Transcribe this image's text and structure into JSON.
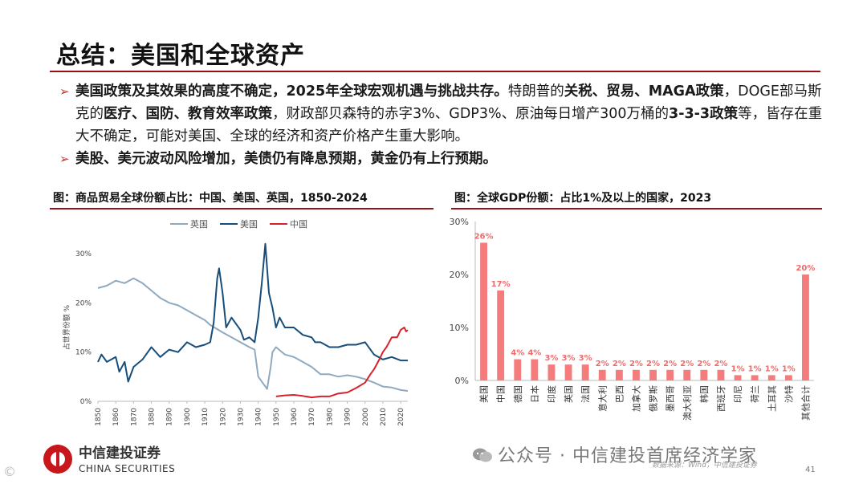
{
  "header": {
    "title": "总结：美国和全球资产"
  },
  "bullets": [
    {
      "arrow": "➢",
      "segments": [
        {
          "t": "美国政策及其效果的高度不确定，2025年全球宏观机遇与挑战共存。",
          "b": true
        },
        {
          "t": "特朗普的",
          "b": false
        },
        {
          "t": "关税、贸易、MAGA政策",
          "b": true
        },
        {
          "t": "，DOGE部马斯克的",
          "b": false
        },
        {
          "t": "医疗、国防、教育效率政策",
          "b": true
        },
        {
          "t": "，财政部贝森特的赤字3%、GDP3%、原油每日增产300万桶的",
          "b": false
        },
        {
          "t": "3-3-3政策",
          "b": true
        },
        {
          "t": "等，皆存在重大不确定，可能对美国、全球的经济和资产价格产生重大影响。",
          "b": false
        }
      ]
    },
    {
      "arrow": "➢",
      "segments": [
        {
          "t": "美股、美元波动风险增加，美债仍有降息预期，黄金仍有上行预期。",
          "b": true
        }
      ]
    }
  ],
  "figures": {
    "left_title": "图：商品贸易全球份额占比：中国、美国、英国，1850-2024",
    "right_title": "图：全球GDP份额：占比1%及以上的国家，2023"
  },
  "chart_data": [
    {
      "type": "line",
      "title": "",
      "ylabel": "占世界份额 %",
      "ylim": [
        0,
        30
      ],
      "yticks": [
        "0%",
        "10%",
        "20%",
        "30%"
      ],
      "xlim": [
        1850,
        2024
      ],
      "xticks": [
        1850,
        1860,
        1870,
        1880,
        1890,
        1900,
        1910,
        1920,
        1930,
        1940,
        1950,
        1960,
        1970,
        1980,
        1990,
        2000,
        2010,
        2020
      ],
      "legend_position": "top-left",
      "series": [
        {
          "name": "英国",
          "color": "#8fa9bf",
          "points": [
            [
              1850,
              23
            ],
            [
              1855,
              23.5
            ],
            [
              1860,
              24.5
            ],
            [
              1865,
              24
            ],
            [
              1870,
              25
            ],
            [
              1875,
              24
            ],
            [
              1880,
              22.5
            ],
            [
              1885,
              21
            ],
            [
              1890,
              20
            ],
            [
              1895,
              19.5
            ],
            [
              1900,
              18.5
            ],
            [
              1905,
              17.5
            ],
            [
              1910,
              16.5
            ],
            [
              1913,
              15.5
            ],
            [
              1920,
              14
            ],
            [
              1925,
              13
            ],
            [
              1930,
              12
            ],
            [
              1935,
              11
            ],
            [
              1938,
              10.5
            ],
            [
              1940,
              5
            ],
            [
              1945,
              2.5
            ],
            [
              1947,
              7
            ],
            [
              1948,
              10
            ],
            [
              1950,
              11
            ],
            [
              1955,
              9.5
            ],
            [
              1960,
              9
            ],
            [
              1965,
              8
            ],
            [
              1970,
              7
            ],
            [
              1975,
              5.5
            ],
            [
              1980,
              5.5
            ],
            [
              1985,
              5
            ],
            [
              1990,
              5.3
            ],
            [
              1995,
              5
            ],
            [
              2000,
              4.5
            ],
            [
              2005,
              3.8
            ],
            [
              2010,
              3
            ],
            [
              2015,
              2.8
            ],
            [
              2020,
              2.3
            ],
            [
              2024,
              2.1
            ]
          ]
        },
        {
          "name": "美国",
          "color": "#174d7a",
          "points": [
            [
              1850,
              8
            ],
            [
              1852,
              9.5
            ],
            [
              1855,
              8
            ],
            [
              1860,
              9
            ],
            [
              1862,
              6
            ],
            [
              1865,
              8
            ],
            [
              1867,
              4
            ],
            [
              1870,
              7
            ],
            [
              1875,
              8.5
            ],
            [
              1880,
              11
            ],
            [
              1885,
              9
            ],
            [
              1890,
              10.5
            ],
            [
              1895,
              10
            ],
            [
              1900,
              12
            ],
            [
              1905,
              11
            ],
            [
              1910,
              11.5
            ],
            [
              1913,
              12
            ],
            [
              1915,
              16
            ],
            [
              1917,
              25
            ],
            [
              1918,
              27
            ],
            [
              1920,
              22
            ],
            [
              1922,
              15
            ],
            [
              1925,
              17
            ],
            [
              1930,
              14.5
            ],
            [
              1932,
              12.5
            ],
            [
              1935,
              13
            ],
            [
              1938,
              12
            ],
            [
              1940,
              17
            ],
            [
              1942,
              24
            ],
            [
              1944,
              32
            ],
            [
              1946,
              22
            ],
            [
              1948,
              19
            ],
            [
              1950,
              15
            ],
            [
              1952,
              17
            ],
            [
              1955,
              15
            ],
            [
              1960,
              15
            ],
            [
              1965,
              13.5
            ],
            [
              1970,
              13
            ],
            [
              1972,
              12
            ],
            [
              1975,
              12
            ],
            [
              1980,
              11
            ],
            [
              1985,
              11
            ],
            [
              1990,
              11.5
            ],
            [
              1995,
              11.5
            ],
            [
              2000,
              12
            ],
            [
              2005,
              9.5
            ],
            [
              2010,
              8.5
            ],
            [
              2015,
              9
            ],
            [
              2020,
              8.3
            ],
            [
              2024,
              8.3
            ]
          ]
        },
        {
          "name": "中国",
          "color": "#d7222b",
          "points": [
            [
              1950,
              1
            ],
            [
              1955,
              1.2
            ],
            [
              1960,
              1.3
            ],
            [
              1965,
              1.1
            ],
            [
              1970,
              0.8
            ],
            [
              1975,
              1
            ],
            [
              1980,
              1
            ],
            [
              1985,
              1.6
            ],
            [
              1990,
              1.8
            ],
            [
              1995,
              2.7
            ],
            [
              2000,
              3.8
            ],
            [
              2003,
              5.5
            ],
            [
              2005,
              6.5
            ],
            [
              2008,
              8.5
            ],
            [
              2010,
              10
            ],
            [
              2012,
              11
            ],
            [
              2015,
              13
            ],
            [
              2018,
              13
            ],
            [
              2020,
              14.5
            ],
            [
              2022,
              15
            ],
            [
              2023,
              14.2
            ],
            [
              2024,
              14.5
            ]
          ]
        }
      ]
    },
    {
      "type": "bar",
      "title": "",
      "ylim": [
        0,
        30
      ],
      "yticks": [
        "0%",
        "10%",
        "20%",
        "30%"
      ],
      "color": "#f47c7c",
      "categories": [
        "美国",
        "中国",
        "德国",
        "日本",
        "印度",
        "英国",
        "法国",
        "意大利",
        "巴西",
        "加拿大",
        "俄罗斯",
        "墨西哥",
        "澳大利亚",
        "韩国",
        "西班牙",
        "印尼",
        "荷兰",
        "土耳其",
        "沙特",
        "其他合计"
      ],
      "values": [
        26,
        17,
        4,
        4,
        3,
        3,
        3,
        2,
        2,
        2,
        2,
        2,
        2,
        2,
        2,
        1,
        1,
        1,
        1,
        20
      ],
      "data_labels": [
        "26%",
        "17%",
        "4%",
        "4%",
        "3%",
        "3%",
        "3%",
        "2%",
        "2%",
        "2%",
        "2%",
        "2%",
        "2%",
        "2%",
        "2%",
        "1%",
        "1%",
        "1%",
        "1%",
        "20%"
      ]
    }
  ],
  "footer": {
    "logo_cn": "中信建投证券",
    "logo_en": "CHINA SECURITIES",
    "wechat": "公众号 · 中信建投首席经济学家",
    "source": "数据来源：Wind，中信建投证券",
    "page": "41",
    "corner": "©"
  }
}
